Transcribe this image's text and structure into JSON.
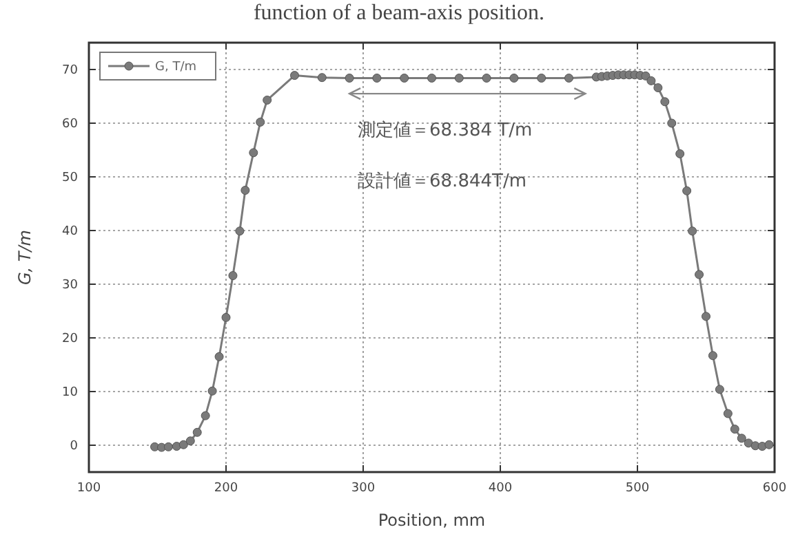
{
  "chart_data": {
    "type": "line",
    "title": "function of a beam-axis position.",
    "xlabel": "Position, mm",
    "ylabel": "G, T/m",
    "xlim": [
      100,
      600
    ],
    "ylim": [
      -5,
      75
    ],
    "xticks": [
      100,
      200,
      300,
      400,
      500,
      600
    ],
    "yticks": [
      0,
      10,
      20,
      30,
      40,
      50,
      60,
      70
    ],
    "grid": true,
    "legend": "top left",
    "marker": "circle",
    "line_style": "solid",
    "annotations": [
      "測定値＝68.384 T/m",
      "設計値＝68.844T/m"
    ],
    "series": [
      {
        "name": "G, T/m",
        "color": "#7a7a7a",
        "x": [
          148,
          153,
          158,
          164,
          169,
          174,
          179,
          185,
          190,
          195,
          200,
          205,
          210,
          214,
          220,
          225,
          230,
          250,
          270,
          290,
          310,
          330,
          350,
          370,
          390,
          410,
          430,
          450,
          470,
          474,
          478,
          482,
          486,
          490,
          494,
          498,
          502,
          506,
          510,
          515,
          520,
          525,
          531,
          536,
          540,
          545,
          550,
          555,
          560,
          566,
          571,
          576,
          581,
          586,
          591,
          596
        ],
        "values": [
          -0.3,
          -0.4,
          -0.3,
          -0.2,
          0.1,
          0.8,
          2.4,
          5.5,
          10.1,
          16.5,
          23.8,
          31.6,
          39.9,
          47.5,
          54.5,
          60.2,
          64.3,
          68.9,
          68.5,
          68.4,
          68.4,
          68.4,
          68.4,
          68.4,
          68.4,
          68.4,
          68.4,
          68.4,
          68.6,
          68.7,
          68.8,
          68.9,
          69,
          69,
          69,
          69,
          68.9,
          68.8,
          67.9,
          66.6,
          64.0,
          60.0,
          54.3,
          47.4,
          39.9,
          31.8,
          24.0,
          16.7,
          10.4,
          5.9,
          3.0,
          1.3,
          0.4,
          -0.1,
          -0.2,
          0.1
        ]
      }
    ]
  }
}
